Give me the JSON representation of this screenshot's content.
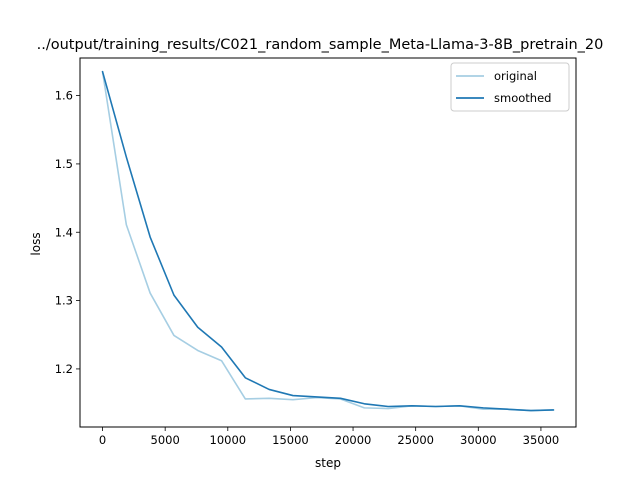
{
  "chart_data": {
    "type": "line",
    "title": "../output/training_results/C021_random_sample_Meta-Llama-3-8B_pretrain_20",
    "xlabel": "step",
    "ylabel": "loss",
    "xlim": [
      -1800,
      37800
    ],
    "ylim": [
      1.115,
      1.655
    ],
    "xticks": [
      0,
      5000,
      10000,
      15000,
      20000,
      25000,
      30000,
      35000
    ],
    "yticks": [
      1.2,
      1.3,
      1.4,
      1.5,
      1.6
    ],
    "xtick_labels": [
      "0",
      "5000",
      "10000",
      "15000",
      "20000",
      "25000",
      "30000",
      "35000"
    ],
    "ytick_labels": [
      "1.2",
      "1.3",
      "1.4",
      "1.5",
      "1.6"
    ],
    "legend_position": "top-right",
    "grid": false,
    "series": [
      {
        "name": "original",
        "color": "#a6cee3",
        "x": [
          0,
          1900,
          3800,
          5700,
          7600,
          9500,
          11400,
          13300,
          15200,
          17100,
          19000,
          20900,
          22800,
          24700,
          26600,
          28500,
          30400,
          32300,
          34200,
          36000
        ],
        "y": [
          1.635,
          1.411,
          1.311,
          1.249,
          1.227,
          1.212,
          1.156,
          1.157,
          1.155,
          1.158,
          1.156,
          1.143,
          1.142,
          1.146,
          1.145,
          1.146,
          1.141,
          1.141,
          1.139,
          1.14
        ]
      },
      {
        "name": "smoothed",
        "color": "#1f78b4",
        "x": [
          0,
          1900,
          3800,
          5700,
          7600,
          9500,
          11400,
          13300,
          15200,
          17100,
          19000,
          20900,
          22800,
          24700,
          26600,
          28500,
          30400,
          32300,
          34200,
          36000
        ],
        "y": [
          1.635,
          1.51,
          1.393,
          1.308,
          1.261,
          1.232,
          1.187,
          1.17,
          1.161,
          1.159,
          1.157,
          1.149,
          1.145,
          1.146,
          1.145,
          1.146,
          1.143,
          1.141,
          1.139,
          1.14
        ]
      }
    ]
  }
}
